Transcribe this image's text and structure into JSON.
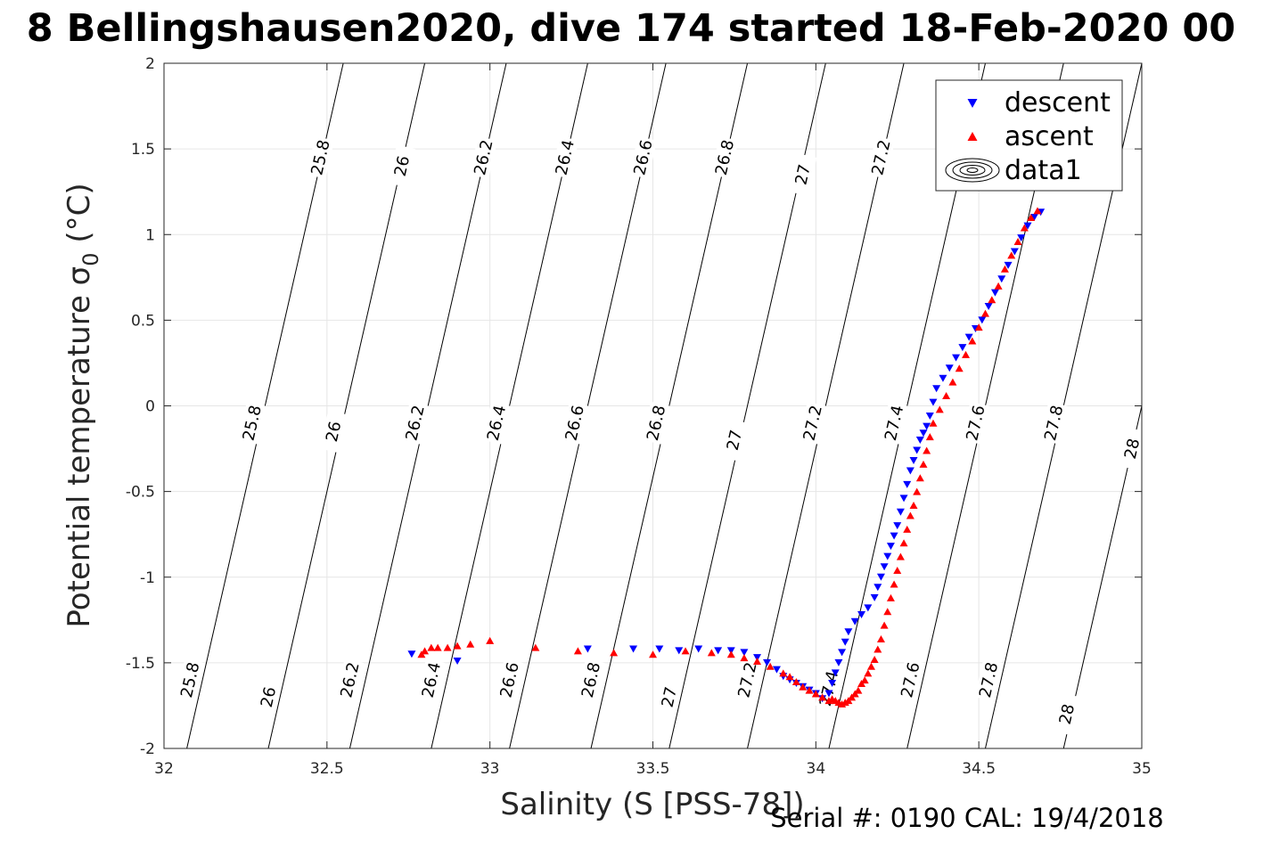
{
  "title": "8 Bellingshausen2020, dive 174 started 18-Feb-2020 00",
  "footer": "Serial #: 0190  CAL: 19/4/2018",
  "chart_data": {
    "type": "scatter",
    "title": "8 Bellingshausen2020, dive 174 started 18-Feb-2020 00",
    "xlabel": "Salinity (S [PSS-78])",
    "ylabel_main": "Potential temperature σ",
    "ylabel_sub": "0",
    "ylabel_unit": " (°C)",
    "xlim": [
      32,
      35
    ],
    "ylim": [
      -2,
      2
    ],
    "grid": true,
    "legend_position": "top-right",
    "x_ticks": [
      {
        "value": 32,
        "label": "32"
      },
      {
        "value": 32.5,
        "label": "32.5"
      },
      {
        "value": 33,
        "label": "33"
      },
      {
        "value": 33.5,
        "label": "33.5"
      },
      {
        "value": 34,
        "label": "34"
      },
      {
        "value": 34.5,
        "label": "34.5"
      },
      {
        "value": 35,
        "label": "35"
      }
    ],
    "y_ticks": [
      {
        "value": 2,
        "label": "2"
      },
      {
        "value": 1.5,
        "label": "1.5"
      },
      {
        "value": 1,
        "label": "1"
      },
      {
        "value": 0.5,
        "label": "0.5"
      },
      {
        "value": 0,
        "label": "0"
      },
      {
        "value": -0.5,
        "label": "-0.5"
      },
      {
        "value": -1,
        "label": "-1"
      },
      {
        "value": -1.5,
        "label": "-1.5"
      },
      {
        "value": -2,
        "label": "-2"
      }
    ],
    "legend": [
      {
        "name": "descent",
        "color": "#0000ff",
        "marker": "triangle-down"
      },
      {
        "name": "ascent",
        "color": "#ff0000",
        "marker": "triangle-up"
      },
      {
        "name": "data1",
        "color": "#000000",
        "marker": "contour"
      }
    ],
    "contours": [
      {
        "level": 25.8,
        "label": "25.8",
        "bottom_s": 32.07,
        "top_s": 32.55,
        "labels": [
          {
            "text": "25.8",
            "s": 32.08,
            "t": -1.6
          },
          {
            "text": "25.8",
            "s": 32.27,
            "t": -0.1
          },
          {
            "text": "25.8",
            "s": 32.48,
            "t": 1.45
          }
        ]
      },
      {
        "level": 26,
        "label": "26",
        "bottom_s": 32.32,
        "top_s": 32.8,
        "labels": [
          {
            "text": "26",
            "s": 32.32,
            "t": -1.7
          },
          {
            "text": "26",
            "s": 32.52,
            "t": -0.15
          },
          {
            "text": "26",
            "s": 32.73,
            "t": 1.4
          }
        ]
      },
      {
        "level": 26.2,
        "label": "26.2",
        "bottom_s": 32.57,
        "top_s": 33.05,
        "labels": [
          {
            "text": "26.2",
            "s": 32.57,
            "t": -1.6
          },
          {
            "text": "26.2",
            "s": 32.77,
            "t": -0.1
          },
          {
            "text": "26.2",
            "s": 32.98,
            "t": 1.45
          }
        ]
      },
      {
        "level": 26.4,
        "label": "26.4",
        "bottom_s": 32.82,
        "top_s": 33.3,
        "labels": [
          {
            "text": "26.4",
            "s": 32.82,
            "t": -1.6
          },
          {
            "text": "26.4",
            "s": 33.02,
            "t": -0.1
          },
          {
            "text": "26.4",
            "s": 33.23,
            "t": 1.45
          }
        ]
      },
      {
        "level": 26.6,
        "label": "26.6",
        "bottom_s": 33.06,
        "top_s": 33.54,
        "labels": [
          {
            "text": "26.6",
            "s": 33.06,
            "t": -1.6
          },
          {
            "text": "26.6",
            "s": 33.26,
            "t": -0.1
          },
          {
            "text": "26.6",
            "s": 33.47,
            "t": 1.45
          }
        ]
      },
      {
        "level": 26.8,
        "label": "26.8",
        "bottom_s": 33.31,
        "top_s": 33.79,
        "labels": [
          {
            "text": "26.8",
            "s": 33.31,
            "t": -1.6
          },
          {
            "text": "26.8",
            "s": 33.51,
            "t": -0.1
          },
          {
            "text": "26.8",
            "s": 33.72,
            "t": 1.45
          }
        ]
      },
      {
        "level": 27,
        "label": "27",
        "bottom_s": 33.55,
        "top_s": 34.03,
        "labels": [
          {
            "text": "27",
            "s": 33.55,
            "t": -1.7
          },
          {
            "text": "27",
            "s": 33.75,
            "t": -0.2
          },
          {
            "text": "27",
            "s": 33.96,
            "t": 1.35
          }
        ]
      },
      {
        "level": 27.2,
        "label": "27.2",
        "bottom_s": 33.79,
        "top_s": 34.27,
        "labels": [
          {
            "text": "27.2",
            "s": 33.79,
            "t": -1.6
          },
          {
            "text": "27.2",
            "s": 33.99,
            "t": -0.1
          },
          {
            "text": "27.2",
            "s": 34.2,
            "t": 1.45
          }
        ]
      },
      {
        "level": 27.4,
        "label": "27.4",
        "bottom_s": 34.04,
        "top_s": 34.52,
        "labels": [
          {
            "text": "27.4",
            "s": 34.04,
            "t": -1.65
          },
          {
            "text": "27.4",
            "s": 34.24,
            "t": -0.1
          },
          {
            "text": "27.4",
            "s": 34.45,
            "t": 1.45
          }
        ]
      },
      {
        "level": 27.6,
        "label": "27.6",
        "bottom_s": 34.28,
        "top_s": 34.76,
        "labels": [
          {
            "text": "27.6",
            "s": 34.29,
            "t": -1.6
          },
          {
            "text": "27.6",
            "s": 34.49,
            "t": -0.1
          }
        ]
      },
      {
        "level": 27.8,
        "label": "27.8",
        "bottom_s": 34.52,
        "top_s": 35.0,
        "labels": [
          {
            "text": "27.8",
            "s": 34.53,
            "t": -1.6
          },
          {
            "text": "27.8",
            "s": 34.73,
            "t": -0.1
          }
        ]
      },
      {
        "level": 28,
        "label": "28",
        "bottom_s": 34.76,
        "top_s": 35.24,
        "labels": [
          {
            "text": "28",
            "s": 34.77,
            "t": -1.8
          },
          {
            "text": "28",
            "s": 34.97,
            "t": -0.25
          },
          {
            "text": "28",
            "s": 35.18,
            "t": 1.3
          }
        ]
      }
    ],
    "series": [
      {
        "name": "descent",
        "color": "#0000ff",
        "marker": "triangle-down",
        "x": [
          34.69,
          34.67,
          34.65,
          34.63,
          34.61,
          34.59,
          34.57,
          34.55,
          34.53,
          34.51,
          34.49,
          34.47,
          34.45,
          34.43,
          34.41,
          34.39,
          34.37,
          34.36,
          34.35,
          34.34,
          34.33,
          34.32,
          34.31,
          34.3,
          34.29,
          34.28,
          34.27,
          34.26,
          34.25,
          34.24,
          34.23,
          34.22,
          34.21,
          34.2,
          34.19,
          34.18,
          34.16,
          34.14,
          34.12,
          34.1,
          34.09,
          34.08,
          34.07,
          34.06,
          34.05,
          34.04,
          34.02,
          34.0,
          33.98,
          33.96,
          33.94,
          33.92,
          33.9,
          33.88,
          33.85,
          33.82,
          33.78,
          33.74,
          33.7,
          33.64,
          33.58,
          33.52,
          33.44,
          33.3,
          32.9,
          32.76
        ],
        "y": [
          1.13,
          1.1,
          1.05,
          0.98,
          0.9,
          0.82,
          0.74,
          0.66,
          0.58,
          0.5,
          0.45,
          0.4,
          0.34,
          0.28,
          0.22,
          0.16,
          0.1,
          0.02,
          -0.06,
          -0.12,
          -0.16,
          -0.2,
          -0.26,
          -0.32,
          -0.38,
          -0.46,
          -0.54,
          -0.62,
          -0.7,
          -0.76,
          -0.82,
          -0.88,
          -0.94,
          -1.0,
          -1.06,
          -1.12,
          -1.18,
          -1.22,
          -1.26,
          -1.32,
          -1.38,
          -1.44,
          -1.5,
          -1.56,
          -1.62,
          -1.68,
          -1.71,
          -1.68,
          -1.66,
          -1.64,
          -1.62,
          -1.6,
          -1.58,
          -1.54,
          -1.5,
          -1.47,
          -1.44,
          -1.43,
          -1.43,
          -1.42,
          -1.43,
          -1.42,
          -1.42,
          -1.42,
          -1.49,
          -1.45
        ]
      },
      {
        "name": "ascent",
        "color": "#ff0000",
        "marker": "triangle-up",
        "x": [
          34.68,
          34.66,
          34.64,
          34.62,
          34.6,
          34.58,
          34.56,
          34.54,
          34.52,
          34.5,
          34.48,
          34.46,
          34.44,
          34.42,
          34.4,
          34.38,
          34.36,
          34.35,
          34.34,
          34.33,
          34.32,
          34.31,
          34.3,
          34.29,
          34.28,
          34.27,
          34.26,
          34.25,
          34.24,
          34.23,
          34.22,
          34.21,
          34.2,
          34.19,
          34.18,
          34.17,
          34.16,
          34.15,
          34.14,
          34.13,
          34.12,
          34.11,
          34.1,
          34.09,
          34.08,
          34.07,
          34.06,
          34.05,
          34.04,
          34.02,
          34.0,
          33.98,
          33.96,
          33.94,
          33.92,
          33.9,
          33.86,
          33.82,
          33.78,
          33.74,
          33.68,
          33.6,
          33.5,
          33.38,
          33.27,
          33.14,
          33.0,
          32.94,
          32.9,
          32.87,
          32.84,
          32.82,
          32.8,
          32.79
        ],
        "y": [
          1.14,
          1.1,
          1.04,
          0.96,
          0.88,
          0.8,
          0.7,
          0.62,
          0.54,
          0.46,
          0.38,
          0.3,
          0.22,
          0.14,
          0.06,
          -0.02,
          -0.1,
          -0.18,
          -0.26,
          -0.34,
          -0.42,
          -0.5,
          -0.58,
          -0.64,
          -0.72,
          -0.8,
          -0.88,
          -0.96,
          -1.04,
          -1.12,
          -1.2,
          -1.28,
          -1.36,
          -1.42,
          -1.48,
          -1.52,
          -1.56,
          -1.6,
          -1.62,
          -1.66,
          -1.68,
          -1.7,
          -1.72,
          -1.73,
          -1.74,
          -1.73,
          -1.72,
          -1.71,
          -1.72,
          -1.7,
          -1.68,
          -1.66,
          -1.64,
          -1.61,
          -1.58,
          -1.56,
          -1.52,
          -1.49,
          -1.47,
          -1.45,
          -1.44,
          -1.43,
          -1.45,
          -1.44,
          -1.43,
          -1.41,
          -1.37,
          -1.39,
          -1.4,
          -1.41,
          -1.41,
          -1.41,
          -1.43,
          -1.45
        ]
      }
    ]
  }
}
